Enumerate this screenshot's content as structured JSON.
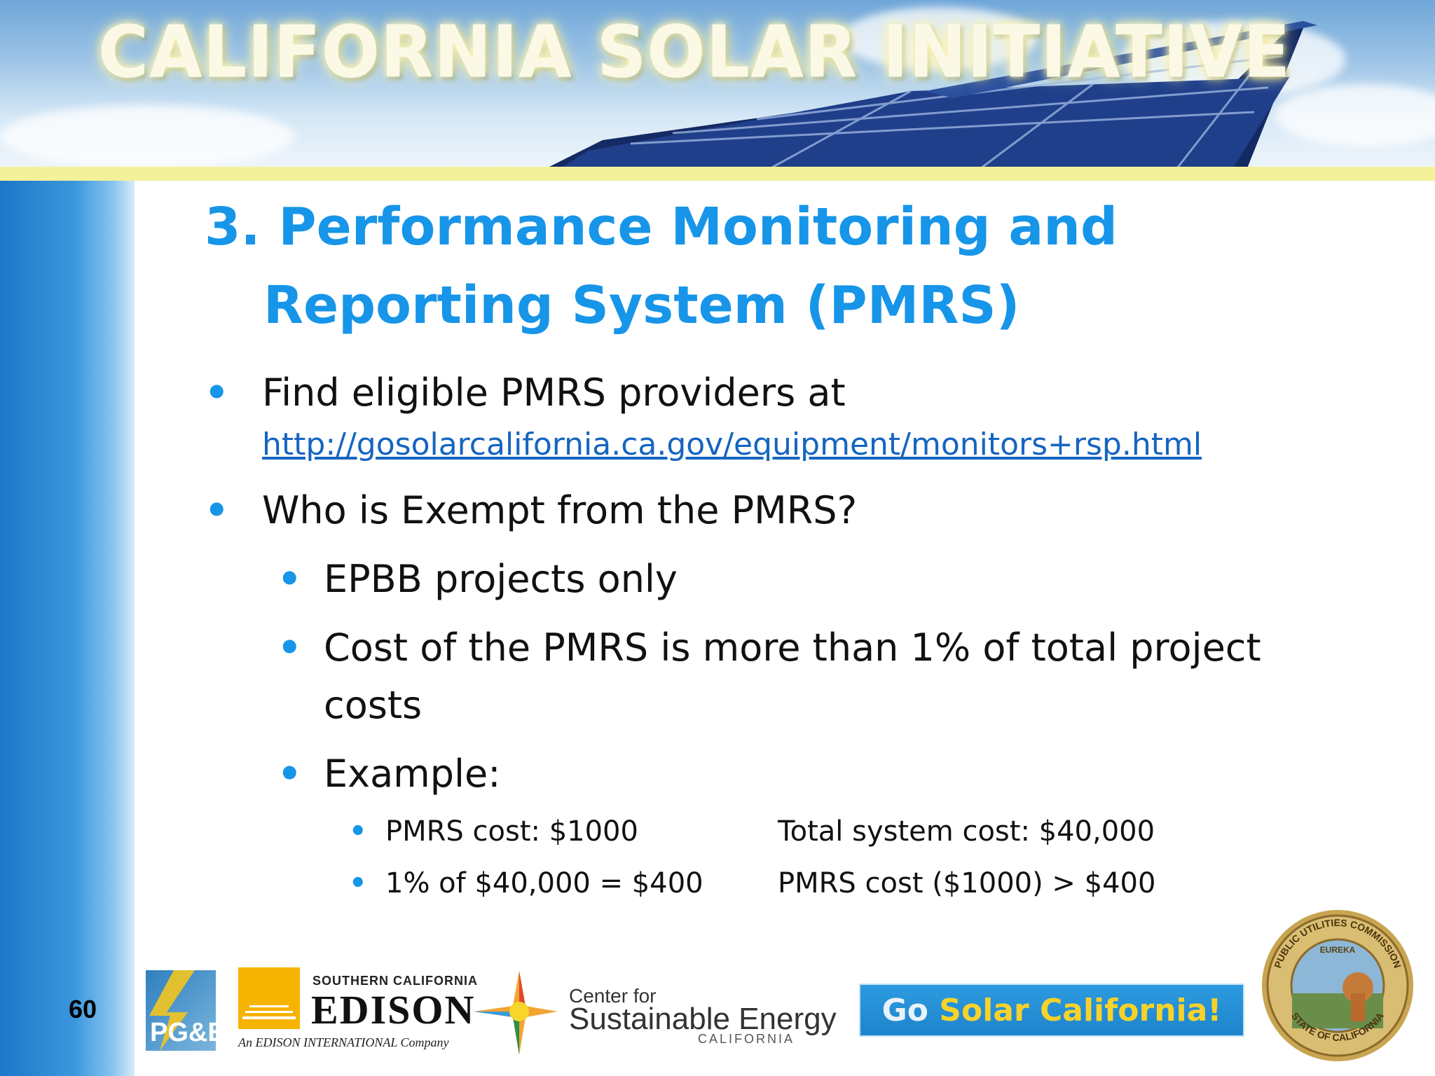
{
  "banner": {
    "title": "CALIFORNIA SOLAR INITIATIVE"
  },
  "slide": {
    "title_line1": "3. Performance Monitoring and",
    "title_line2": "Reporting System (PMRS)",
    "bullets": {
      "b1": "Find eligible PMRS providers at",
      "b1_link": "http://gosolarcalifornia.ca.gov/equipment/monitors+rsp.html",
      "b2": "Who is Exempt from the PMRS?",
      "b2_1": "EPBB projects only",
      "b2_2_line1": "Cost of the PMRS is more than 1% of total project",
      "b2_2_line2": "costs",
      "b2_3": "Example:",
      "ex1_left": "PMRS cost: $1000",
      "ex1_right": "Total system cost: $40,000",
      "ex2_left": "1% of $40,000 = $400",
      "ex2_right": "PMRS cost ($1000) > $400"
    },
    "number": "60"
  },
  "footer": {
    "pge": "PG&E",
    "sce_top": "SOUTHERN CALIFORNIA",
    "sce_name": "EDISON",
    "sce_sub": "An EDISON INTERNATIONAL Company",
    "cse_top": "Center for",
    "cse_name": "Sustainable Energy",
    "cse_sub": "CALIFORNIA",
    "gosolar_go": "Go",
    "gosolar_rest": "Solar California!",
    "seal_top": "PUBLIC UTILITIES COMMISSION",
    "seal_bottom": "STATE OF CALIFORNIA",
    "seal_center": "EUREKA"
  },
  "colors": {
    "accent": "#1795e8",
    "link": "#1565c0",
    "highlight": "#f3f29a"
  }
}
